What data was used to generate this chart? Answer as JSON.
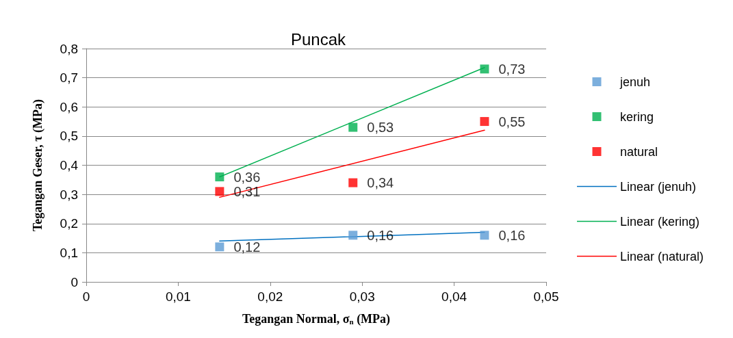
{
  "chart_data": {
    "type": "scatter",
    "title": "Puncak",
    "xlabel": "Tegangan Normal, σ$_{n}$ (MPa)",
    "ylabel": "Tegangan Geser, τ (MPa)",
    "xlim": [
      0,
      0.05
    ],
    "xticks": [
      {
        "value": 0,
        "label": "0"
      },
      {
        "value": 0.01,
        "label": "0,01"
      },
      {
        "value": 0.02,
        "label": "0,02"
      },
      {
        "value": 0.03,
        "label": "0,03"
      },
      {
        "value": 0.04,
        "label": "0,04"
      },
      {
        "value": 0.05,
        "label": "0,05"
      }
    ],
    "ylim": [
      0,
      0.8
    ],
    "yticks": [
      {
        "value": 0,
        "label": "0"
      },
      {
        "value": 0.1,
        "label": "0,1"
      },
      {
        "value": 0.2,
        "label": "0,2"
      },
      {
        "value": 0.3,
        "label": "0,3"
      },
      {
        "value": 0.4,
        "label": "0,4"
      },
      {
        "value": 0.5,
        "label": "0,5"
      },
      {
        "value": 0.6,
        "label": "0,6"
      },
      {
        "value": 0.7,
        "label": "0,7"
      },
      {
        "value": 0.8,
        "label": "0,8"
      }
    ],
    "grid": "y",
    "legend": "right",
    "marker": "square",
    "series": [
      {
        "name": "jenuh",
        "color": "#5b9bd5",
        "x": [
          0.0145,
          0.029,
          0.0433
        ],
        "values": [
          0.12,
          0.16,
          0.16
        ],
        "value_labels": [
          "0,12",
          "0,16",
          "0,16"
        ]
      },
      {
        "name": "kering",
        "color": "#00b050",
        "x": [
          0.0145,
          0.029,
          0.0433
        ],
        "values": [
          0.36,
          0.53,
          0.73
        ],
        "value_labels": [
          "0,36",
          "0,53",
          "0,73"
        ]
      },
      {
        "name": "natural",
        "color": "#ff0000",
        "x": [
          0.0145,
          0.029,
          0.0433
        ],
        "values": [
          0.31,
          0.34,
          0.55
        ],
        "value_labels": [
          "0,31",
          "0,34",
          "0,55"
        ]
      },
      {
        "name": "Linear (jenuh)",
        "type": "line",
        "marker": "none",
        "color": "#0070c0",
        "x": [
          0.0145,
          0.0433
        ],
        "values": [
          0.14,
          0.17
        ]
      },
      {
        "name": "Linear (kering)",
        "type": "line",
        "marker": "none",
        "color": "#00b050",
        "x": [
          0.0145,
          0.0433
        ],
        "values": [
          0.36,
          0.735
        ]
      },
      {
        "name": "Linear (natural)",
        "type": "line",
        "marker": "none",
        "color": "#ff0000",
        "x": [
          0.0145,
          0.0433
        ],
        "values": [
          0.29,
          0.52
        ]
      }
    ]
  }
}
